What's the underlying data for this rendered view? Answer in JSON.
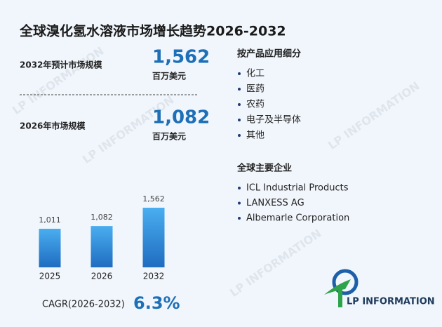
{
  "header": {
    "title": "全球溴化氢水溶液市场增长趋势2026-2032"
  },
  "stats": [
    {
      "label": "2032年预计市场规模",
      "value": "1,562",
      "unit": "百万美元"
    },
    {
      "label": "2026年市场规模",
      "value": "1,082",
      "unit": "百万美元"
    }
  ],
  "segments": {
    "title": "按产品应用细分",
    "items": [
      "化工",
      "医药",
      "农药",
      "电子及半导体",
      "其他"
    ]
  },
  "companies": {
    "title": "全球主要企业",
    "items": [
      "ICL Industrial Products",
      "LANXESS AG",
      "Albemarle Corporation"
    ]
  },
  "cagr": {
    "label": "CAGR(2026-2032)",
    "value": "6.3%"
  },
  "logo": {
    "text": "LP INFORMATION"
  },
  "chart_data": {
    "type": "bar",
    "categories": [
      "2025",
      "2026",
      "2032"
    ],
    "values": [
      1011,
      1082,
      1562
    ],
    "value_labels": [
      "1,011",
      "1,082",
      "1,562"
    ],
    "color": "#2a86d6"
  }
}
